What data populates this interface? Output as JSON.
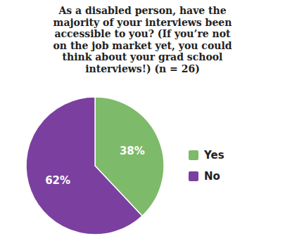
{
  "chart_data": {
    "type": "pie",
    "title": "As a disabled person, have the\nmajority of your interviews been\naccessible to you? (If you’re not\non the job market yet, you could\nthink about your grad school\ninterviews!) (n = 26)",
    "categories": [
      "Yes",
      "No"
    ],
    "values": [
      38,
      62
    ],
    "value_labels": [
      "38%",
      "62%"
    ],
    "colors": [
      "#7dba6a",
      "#7b3fa0"
    ],
    "data_labels": true,
    "legend": "right"
  }
}
